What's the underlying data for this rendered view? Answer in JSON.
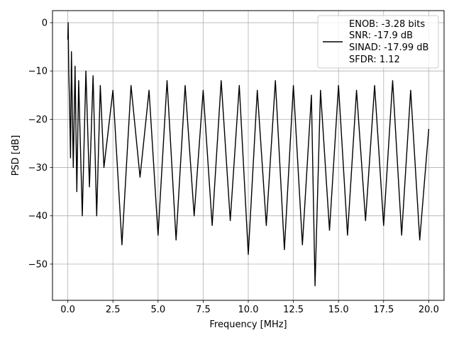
{
  "chart_data": {
    "type": "line",
    "title": "",
    "xlabel": "Frequency [MHz]",
    "ylabel": "PSD [dB]",
    "xlim": [
      -0.85,
      20.85
    ],
    "ylim": [
      -57.5,
      2.5
    ],
    "xticks": [
      0.0,
      2.5,
      5.0,
      7.5,
      10.0,
      12.5,
      15.0,
      17.5,
      20.0
    ],
    "xtick_labels": [
      "0.0",
      "2.5",
      "5.0",
      "7.5",
      "10.0",
      "12.5",
      "15.0",
      "17.5",
      "20.0"
    ],
    "yticks": [
      0,
      -10,
      -20,
      -30,
      -40,
      -50
    ],
    "ytick_labels": [
      "0",
      "−10",
      "−20",
      "−30",
      "−40",
      "−50"
    ],
    "grid": true,
    "legend_position": "upper right",
    "series_color": "#000000",
    "legend": {
      "lines": [
        "ENOB: -3.28 bits",
        "SNR: -17.9 dB",
        "SINAD: -17.99 dB",
        "SFDR: 1.12"
      ]
    },
    "series": [
      {
        "x": [
          0.0,
          0.02,
          0.05,
          0.1,
          0.15,
          0.2,
          0.3,
          0.4,
          0.5,
          0.6,
          0.8,
          1.0,
          1.2,
          1.4,
          1.6,
          1.8,
          2.0,
          2.5,
          3.0,
          3.5,
          4.0,
          4.5,
          5.0,
          5.5,
          6.0,
          6.5,
          7.0,
          7.5,
          8.0,
          8.5,
          9.0,
          9.5,
          10.0,
          10.5,
          11.0,
          11.5,
          12.0,
          12.5,
          13.0,
          13.5,
          13.7,
          14.0,
          14.5,
          15.0,
          15.5,
          16.0,
          16.5,
          17.0,
          17.5,
          18.0,
          18.5,
          19.0,
          19.5,
          20.0
        ],
        "y": [
          -3.5,
          0.0,
          -10.0,
          -18.0,
          -28.0,
          -6.0,
          -30.0,
          -9.0,
          -35.0,
          -12.0,
          -40.0,
          -10.0,
          -34.0,
          -11.0,
          -40.0,
          -13.0,
          -30.0,
          -14.0,
          -46.0,
          -13.0,
          -32.0,
          -14.0,
          -44.0,
          -12.0,
          -45.0,
          -13.0,
          -40.0,
          -14.0,
          -42.0,
          -12.0,
          -41.0,
          -13.0,
          -48.0,
          -14.0,
          -42.0,
          -12.0,
          -47.0,
          -13.0,
          -46.0,
          -15.0,
          -54.5,
          -14.0,
          -43.0,
          -13.0,
          -44.0,
          -14.0,
          -41.0,
          -13.0,
          -42.0,
          -12.0,
          -44.0,
          -14.0,
          -45.0,
          -22.0
        ]
      }
    ]
  }
}
